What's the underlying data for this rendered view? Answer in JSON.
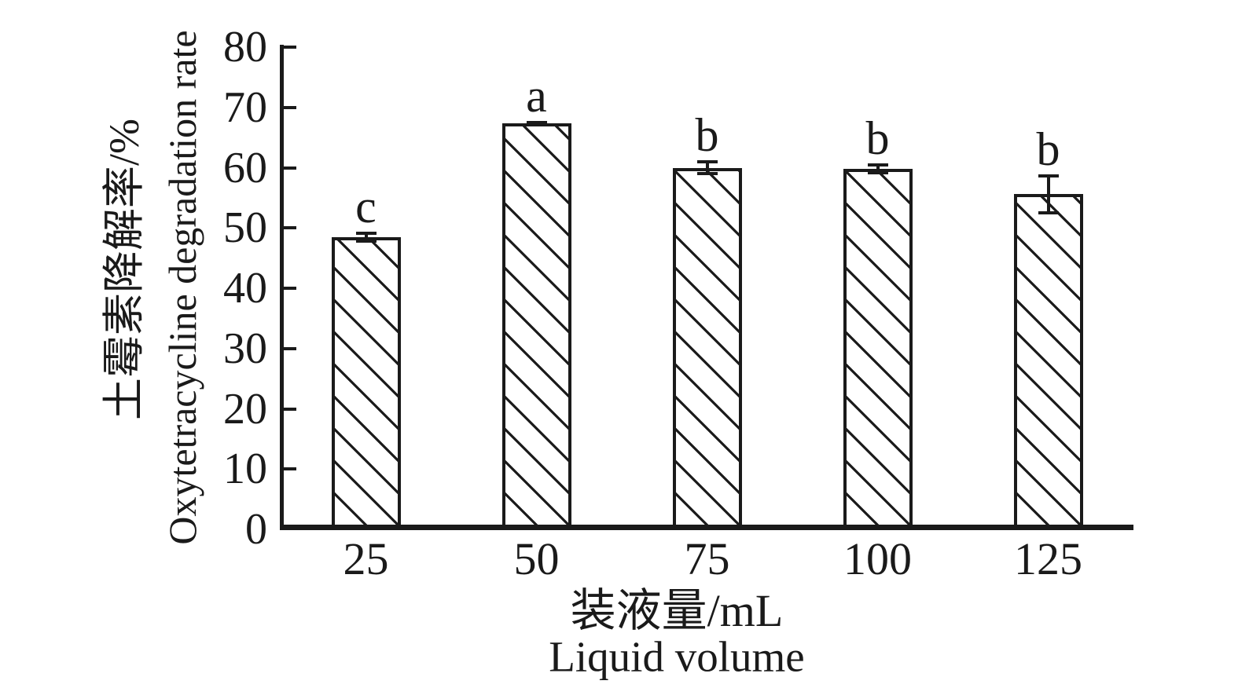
{
  "figure": {
    "background": "#ffffff",
    "ink_color": "#1a1a1a"
  },
  "axes": {
    "y_title_cn": "土霉素降解率/%",
    "y_title_en": "Oxytetracycline degradation rate",
    "x_title_cn": "装液量/mL",
    "x_title_en": "Liquid volume"
  },
  "chart_data": {
    "type": "bar",
    "title": "",
    "xlabel": "装液量/mL (Liquid volume)",
    "ylabel": "土霉素降解率/% (Oxytetracycline degradation rate)",
    "categories": [
      "25",
      "50",
      "75",
      "100",
      "125"
    ],
    "values": [
      48.5,
      67.3,
      60.0,
      59.8,
      55.6
    ],
    "error_bars": [
      0.9,
      0.4,
      1.2,
      0.9,
      3.3
    ],
    "significance_letters": [
      "c",
      "a",
      "b",
      "b",
      "b"
    ],
    "ylim": [
      0,
      80
    ],
    "yticks": [
      0,
      10,
      20,
      30,
      40,
      50,
      60,
      70,
      80
    ],
    "grid": false,
    "legend": false,
    "bar_fill": "#ffffff",
    "bar_hatch": "black diagonal lines (backslash direction)",
    "series": [
      {
        "name": "Oxytetracycline degradation rate",
        "values": [
          48.5,
          67.3,
          60.0,
          59.8,
          55.6
        ]
      }
    ]
  }
}
